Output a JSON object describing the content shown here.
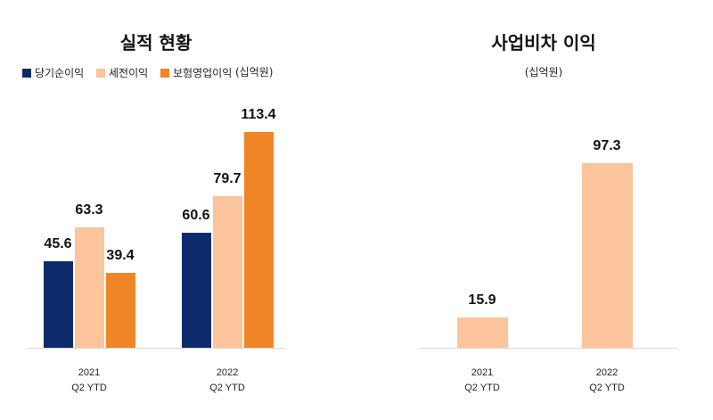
{
  "chart_data": [
    {
      "type": "bar",
      "title": "실적 현황",
      "unit": "(십억원)",
      "categories": [
        "2021\nQ2 YTD",
        "2022\nQ2 YTD"
      ],
      "series": [
        {
          "name": "당기순이익",
          "color": "#0d2a6b",
          "values": [
            45.6,
            60.6
          ]
        },
        {
          "name": "세전이익",
          "color": "#fbc49a",
          "values": [
            63.3,
            79.7
          ]
        },
        {
          "name": "보험영업이익",
          "color": "#f08526",
          "values": [
            39.4,
            113.4
          ]
        }
      ]
    },
    {
      "type": "bar",
      "title": "사업비차 이익",
      "unit": "(십억원)",
      "categories": [
        "2021\nQ2 YTD",
        "2022\nQ2 YTD"
      ],
      "values": [
        15.9,
        97.3
      ],
      "color": "#fbc49a"
    }
  ]
}
